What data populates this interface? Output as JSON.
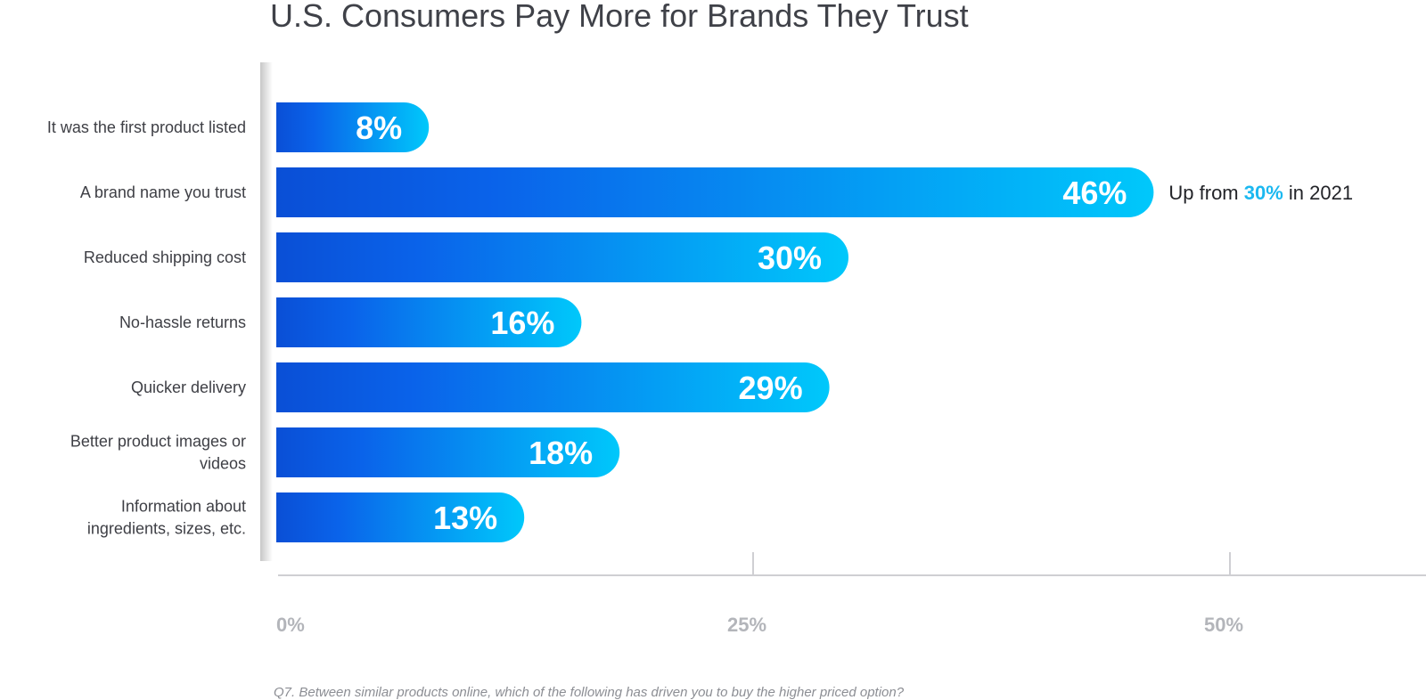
{
  "chart_data": {
    "type": "bar",
    "orientation": "horizontal",
    "title": "U.S. Consumers Pay More for Brands They Trust",
    "categories": [
      [
        "It was the first product listed"
      ],
      [
        "A brand name you trust"
      ],
      [
        "Reduced shipping cost"
      ],
      [
        "No-hassle returns"
      ],
      [
        "Quicker delivery"
      ],
      [
        "Better product images or",
        "videos"
      ],
      [
        "Information about",
        "ingredients, sizes, etc."
      ]
    ],
    "values": [
      8,
      46,
      30,
      16,
      29,
      18,
      13
    ],
    "value_labels": [
      "8%",
      "46%",
      "30%",
      "16%",
      "29%",
      "18%",
      "13%"
    ],
    "xlim": [
      0,
      60
    ],
    "ticks": [
      0,
      25,
      50
    ],
    "tick_labels": [
      "0%",
      "25%",
      "50%"
    ],
    "annotation": {
      "category_index": 1,
      "prefix": "Up from ",
      "highlight": "30%",
      "suffix": " in 2021",
      "highlight_color": "#1bb8f0"
    },
    "footnote": "Q7. Between similar products online, which of the following has driven you to buy the higher priced option?",
    "colors": {
      "bar_start": "#0a4fd6",
      "bar_mid": "#0a63ea",
      "bar_end": "#00c8fb",
      "axis": "#cfcfd3",
      "tick_label": "#b3b5ba"
    }
  }
}
